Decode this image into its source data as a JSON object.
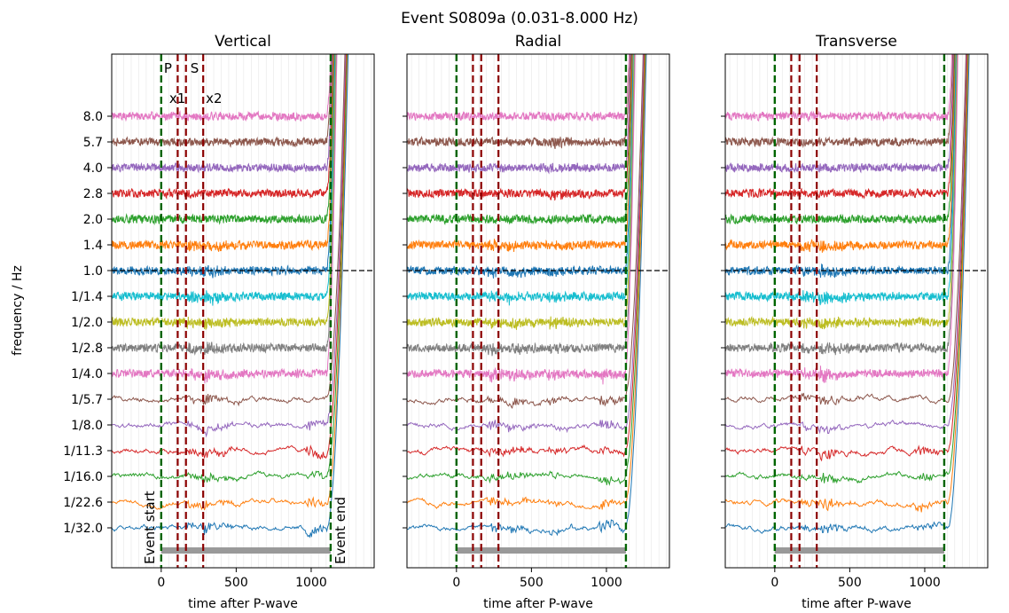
{
  "chart_data": {
    "type": "line",
    "title": "Event S0809a (0.031-8.000 Hz)",
    "ylabel": "frequency / Hz",
    "xlabel": "time after P-wave",
    "xlim": [
      -330,
      1420
    ],
    "x_ticks": [
      0,
      500,
      1000
    ],
    "y_tick_labels": [
      "8.0",
      "5.7",
      "4.0",
      "2.8",
      "2.0",
      "1.4",
      "1.0",
      "1/1.4",
      "1/2.0",
      "1/2.8",
      "1/4.0",
      "1/5.7",
      "1/8.0",
      "1/11.3",
      "1/16.0",
      "1/22.6",
      "1/32.0"
    ],
    "series_colors": [
      "#e377c2",
      "#8c564b",
      "#9467bd",
      "#d62728",
      "#2ca02c",
      "#ff7f0e",
      "#1f77b4",
      "#17becf",
      "#bcbd22",
      "#7f7f7f",
      "#e377c2",
      "#8c564b",
      "#9467bd",
      "#d62728",
      "#2ca02c",
      "#ff7f0e",
      "#1f77b4"
    ],
    "reference_band_color": "#0b3c6e",
    "markers": {
      "event_start": 0,
      "event_end": 1130,
      "event_line_color": "#006400",
      "phase_lines": [
        110,
        165,
        280
      ],
      "phase_line_color": "#8b0000",
      "phase_labels": [
        "P",
        "S"
      ],
      "pick_labels": [
        "x1",
        "x2"
      ],
      "event_start_label": "Event start",
      "event_end_label": "Event end"
    },
    "window_bar": {
      "from": 0,
      "to": 1130,
      "color": "#999999"
    },
    "panels": [
      {
        "title": "Vertical",
        "arrivals": [
          {
            "t": 180,
            "amp": 0.9,
            "band_min": 5
          },
          {
            "t": 280,
            "amp": 1.3,
            "band_min": 5
          },
          {
            "t": 980,
            "amp": 1.6,
            "band_min": 12
          }
        ],
        "tail_start": 1100
      },
      {
        "title": "Radial",
        "arrivals": [
          {
            "t": 220,
            "amp": 1.2,
            "band_min": 5
          },
          {
            "t": 350,
            "amp": 1.0,
            "band_min": 5
          },
          {
            "t": 620,
            "amp": 0.9,
            "band_min": 1
          },
          {
            "t": 960,
            "amp": 1.5,
            "band_min": 10
          }
        ],
        "tail_start": 1120
      },
      {
        "title": "Transverse",
        "arrivals": [
          {
            "t": 180,
            "amp": 0.9,
            "band_min": 5
          },
          {
            "t": 310,
            "amp": 1.5,
            "band_min": 5
          },
          {
            "t": 950,
            "amp": 1.3,
            "band_min": 13
          }
        ],
        "tail_start": 1150
      }
    ]
  }
}
